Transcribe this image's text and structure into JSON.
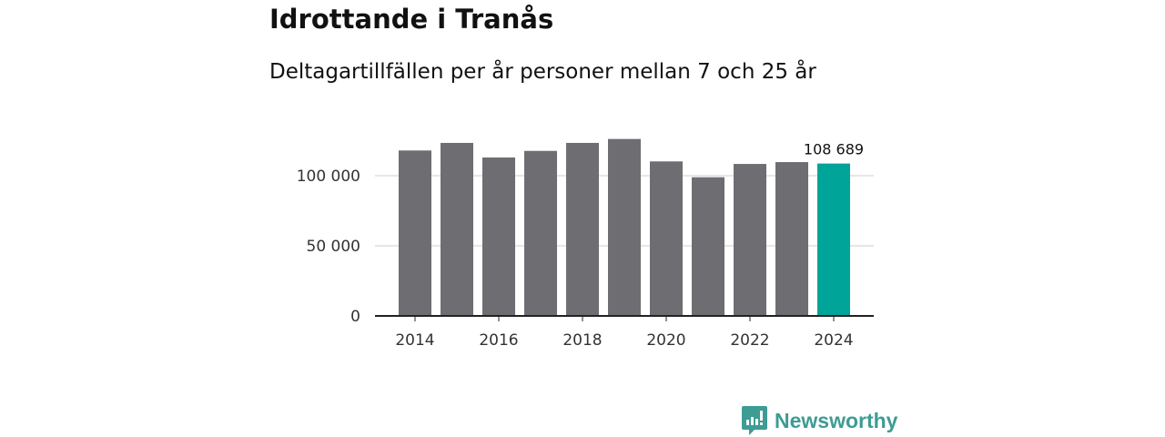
{
  "chart_data": {
    "type": "bar",
    "title": "Idrottande i Tranås",
    "subtitle": "Deltagartillfällen per år personer mellan 7 och 25 år",
    "categories": [
      "2014",
      "2015",
      "2016",
      "2017",
      "2018",
      "2019",
      "2020",
      "2021",
      "2022",
      "2023",
      "2024"
    ],
    "values": [
      118000,
      123400,
      113000,
      117700,
      123400,
      126200,
      110200,
      98900,
      108400,
      109700,
      108689
    ],
    "x_tick_labels": [
      "2014",
      "2016",
      "2018",
      "2020",
      "2022",
      "2024"
    ],
    "y_ticks": [
      0,
      50000,
      100000
    ],
    "y_tick_labels": [
      "0",
      "50 000",
      "100 000"
    ],
    "ylim": [
      0,
      130000
    ],
    "grid": true,
    "data_label": {
      "category": "2024",
      "text": "108 689"
    },
    "colors": {
      "bar": "#6e6d72",
      "highlight": "#00a499",
      "grid": "#dddddd",
      "axis": "#222222"
    }
  },
  "brand": {
    "name": "Newsworthy",
    "color": "#3d9c94"
  }
}
